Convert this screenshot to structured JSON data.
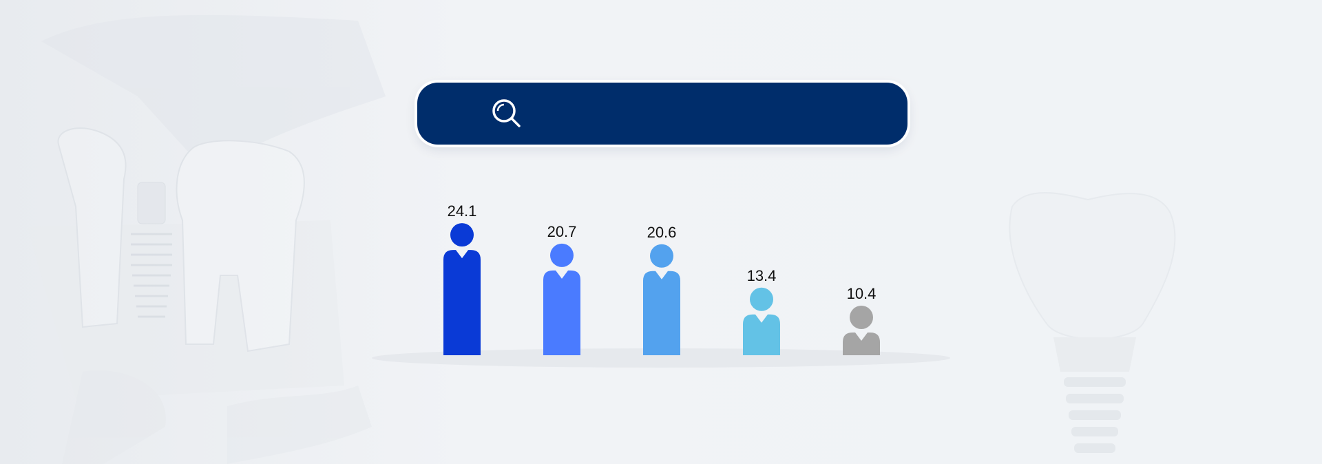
{
  "search": {
    "icon": "search-icon",
    "color": "#002d6b"
  },
  "chart_data": {
    "type": "bar",
    "categories": [
      "",
      "",
      "",
      "",
      ""
    ],
    "values": [
      24.1,
      20.7,
      20.6,
      13.4,
      10.4
    ],
    "colors": [
      "#0a3ad6",
      "#4a7bff",
      "#53a2ee",
      "#63c2e6",
      "#a5a5a5"
    ],
    "bar_shape": "person-figure",
    "title": "",
    "xlabel": "",
    "ylabel": "",
    "ylim": [
      0,
      30
    ],
    "grid": false,
    "legend": "none"
  },
  "background": {
    "description_icons": [
      "dental-implant-model-image",
      "implant-crown-image"
    ]
  }
}
